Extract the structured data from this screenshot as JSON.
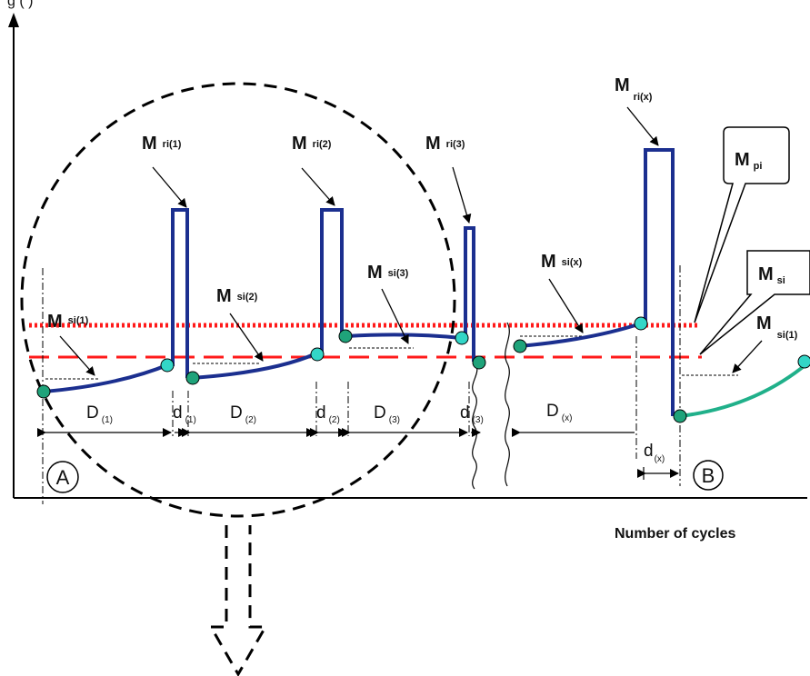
{
  "header_fragment": "g          (       )",
  "axes": {
    "x_label": "Number of cycles"
  },
  "markers": {
    "start": "A",
    "end": "B"
  },
  "callouts": {
    "mpi": {
      "main": "M",
      "sub": "pi"
    },
    "msi": {
      "main": "M",
      "sub": "si"
    }
  },
  "peak_labels": [
    {
      "main": "M",
      "sub": "ri(1)"
    },
    {
      "main": "M",
      "sub": "ri(2)"
    },
    {
      "main": "M",
      "sub": "ri(3)"
    },
    {
      "main": "M",
      "sub": "ri(x)"
    }
  ],
  "segment_labels": [
    {
      "main": "M",
      "sub": "si(1)"
    },
    {
      "main": "M",
      "sub": "si(2)"
    },
    {
      "main": "M",
      "sub": "si(3)"
    },
    {
      "main": "M",
      "sub": "si(x)"
    },
    {
      "main": "M",
      "sub": "si(1)"
    }
  ],
  "dimensions": [
    {
      "main": "D",
      "sub": "(1)"
    },
    {
      "main": "d",
      "sub": "(1)"
    },
    {
      "main": "D",
      "sub": "(2)"
    },
    {
      "main": "d",
      "sub": "(2)"
    },
    {
      "main": "D",
      "sub": "(3)"
    },
    {
      "main": "d",
      "sub": "(3)"
    },
    {
      "main": "D",
      "sub": "(x)"
    },
    {
      "main": "d",
      "sub": "(x)"
    }
  ],
  "colors": {
    "curve": "#1b2f8f",
    "next_curve": "#20b08a",
    "threshold_dotted": "#ff1a1a",
    "threshold_dashed": "#ff1a1a",
    "dot_start": "#1fa37a",
    "dot_end": "#33d6c7"
  }
}
